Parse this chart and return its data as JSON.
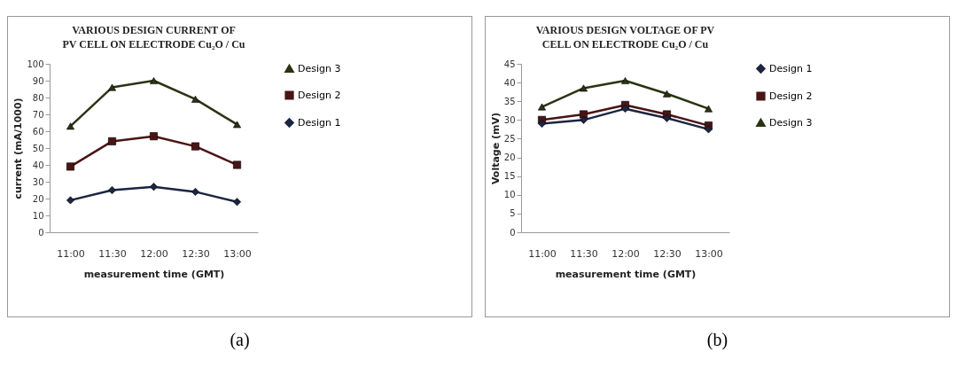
{
  "chart_data": [
    {
      "type": "line",
      "title": "VARIOUS DESIGN CURRENT  OF PV CELL ON ELECTRODE Cu₂O / Cu",
      "xlabel": "measurement time (GMT)",
      "ylabel": "current  (mA/1000)",
      "categories": [
        "11:00",
        "11:30",
        "12:00",
        "12:30",
        "13:00"
      ],
      "ylim": [
        0,
        100
      ],
      "yticks": [
        0,
        10,
        20,
        30,
        40,
        50,
        60,
        70,
        80,
        90,
        100
      ],
      "legend": "right",
      "annotations": [
        "(a)"
      ],
      "series": [
        {
          "name": "Design 3",
          "color": "#2b3314",
          "marker": "triangle",
          "values": [
            63,
            86,
            90,
            79,
            64
          ]
        },
        {
          "name": "Design 2",
          "color": "#4a1414",
          "marker": "square",
          "values": [
            39,
            54,
            57,
            51,
            40
          ]
        },
        {
          "name": "Design 1",
          "color": "#1c2541",
          "marker": "diamond",
          "values": [
            19,
            25,
            27,
            24,
            18
          ]
        }
      ]
    },
    {
      "type": "line",
      "title": "VARIOUS DESIGN VOLTAGE OF PV CELL ON ELECTRODE Cu₂O / Cu",
      "xlabel": "measurement time (GMT)",
      "ylabel": "Voltage (mV)",
      "categories": [
        "11:00",
        "11:30",
        "12:00",
        "12:30",
        "13:00"
      ],
      "ylim": [
        0,
        45
      ],
      "yticks": [
        0,
        5,
        10,
        15,
        20,
        25,
        30,
        35,
        40,
        45
      ],
      "legend": "right",
      "annotations": [
        "(b)"
      ],
      "series": [
        {
          "name": "Design 1",
          "color": "#1c2541",
          "marker": "diamond",
          "values": [
            29,
            30,
            33,
            30.5,
            27.5
          ]
        },
        {
          "name": "Design 2",
          "color": "#4a1414",
          "marker": "square",
          "values": [
            30,
            31.5,
            34,
            31.5,
            28.5
          ]
        },
        {
          "name": "Design 3",
          "color": "#2b3314",
          "marker": "triangle",
          "values": [
            33.5,
            38.5,
            40.5,
            37,
            33
          ]
        }
      ]
    }
  ]
}
